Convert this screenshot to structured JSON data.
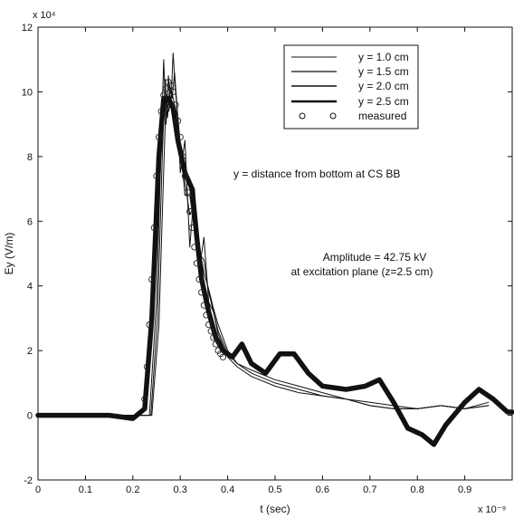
{
  "chart_data": {
    "type": "line",
    "title": "",
    "xlabel": "t (sec)",
    "ylabel": "Ey (V/m)",
    "x_multiplier": "x 10⁻⁹",
    "y_multiplier": "x 10⁴",
    "xlim": [
      0,
      1.0
    ],
    "ylim": [
      -2,
      12
    ],
    "x_ticks": [
      "0",
      "0.1",
      "0.2",
      "0.3",
      "0.4",
      "0.5",
      "0.6",
      "0.7",
      "0.8",
      "0.9"
    ],
    "y_ticks": [
      "-2",
      "0",
      "2",
      "4",
      "6",
      "8",
      "10",
      "12"
    ],
    "grid": false,
    "legend_position": "top-right",
    "annotations": [
      "y = distance from bottom at CS BB",
      "Amplitude = 42.75 kV",
      "at excitation plane (z=2.5 cm)"
    ],
    "series": [
      {
        "name": "y = 1.0 cm",
        "style": "thin",
        "x": [
          0,
          0.1,
          0.2,
          0.235,
          0.25,
          0.26,
          0.265,
          0.27,
          0.275,
          0.28,
          0.285,
          0.29,
          0.295,
          0.3,
          0.31,
          0.32,
          0.33,
          0.34,
          0.35,
          0.36,
          0.37,
          0.38,
          0.4,
          0.42,
          0.45,
          0.5,
          0.55,
          0.6,
          0.65,
          0.7,
          0.75,
          0.8,
          0.85,
          0.9,
          0.95
        ],
        "y": [
          0,
          0,
          0,
          0,
          3.5,
          8.5,
          11,
          9,
          10.5,
          9.5,
          11.2,
          10,
          9.2,
          7.5,
          8.5,
          5.2,
          7,
          4.5,
          5.5,
          3.5,
          3.2,
          2.5,
          1.8,
          1.5,
          1.2,
          0.9,
          0.7,
          0.6,
          0.5,
          0.3,
          0.2,
          0.2,
          0.3,
          0.2,
          0.4
        ]
      },
      {
        "name": "y = 1.5 cm",
        "style": "thin",
        "x": [
          0,
          0.1,
          0.2,
          0.238,
          0.252,
          0.262,
          0.268,
          0.273,
          0.278,
          0.283,
          0.288,
          0.293,
          0.3,
          0.31,
          0.32,
          0.33,
          0.34,
          0.35,
          0.36,
          0.37,
          0.38,
          0.4,
          0.42,
          0.45,
          0.5,
          0.55,
          0.6,
          0.65,
          0.7,
          0.75,
          0.8,
          0.85,
          0.9,
          0.95
        ],
        "y": [
          0,
          0,
          0,
          0,
          3,
          8,
          10.4,
          9.2,
          10.2,
          9.8,
          10.6,
          9.6,
          8,
          7.2,
          6.2,
          6.5,
          5,
          4.8,
          3.8,
          3.2,
          2.6,
          1.9,
          1.6,
          1.3,
          1,
          0.8,
          0.6,
          0.5,
          0.3,
          0.2,
          0.2,
          0.3,
          0.2,
          0.3
        ]
      },
      {
        "name": "y = 2.0 cm",
        "style": "thin",
        "x": [
          0,
          0.1,
          0.2,
          0.24,
          0.255,
          0.265,
          0.27,
          0.276,
          0.282,
          0.288,
          0.295,
          0.3,
          0.31,
          0.32,
          0.33,
          0.34,
          0.35,
          0.36,
          0.37,
          0.38,
          0.4,
          0.42,
          0.45,
          0.5,
          0.55,
          0.6,
          0.65,
          0.7,
          0.75,
          0.8,
          0.85,
          0.9,
          0.95
        ],
        "y": [
          0,
          0,
          0,
          0,
          2.8,
          7.6,
          9.8,
          9.4,
          10,
          9.6,
          9.2,
          8.4,
          6.8,
          6.8,
          5.8,
          5.2,
          4.4,
          3.9,
          3.3,
          2.8,
          2,
          1.6,
          1.4,
          1.1,
          0.9,
          0.7,
          0.5,
          0.4,
          0.3,
          0.2,
          0.3,
          0.2,
          0.3
        ]
      },
      {
        "name": "y = 2.5 cm",
        "style": "thick",
        "x": [
          0,
          0.05,
          0.1,
          0.15,
          0.2,
          0.225,
          0.24,
          0.255,
          0.265,
          0.275,
          0.285,
          0.295,
          0.31,
          0.325,
          0.335,
          0.345,
          0.36,
          0.375,
          0.39,
          0.41,
          0.43,
          0.45,
          0.48,
          0.51,
          0.54,
          0.57,
          0.6,
          0.65,
          0.69,
          0.72,
          0.75,
          0.78,
          0.81,
          0.835,
          0.86,
          0.9,
          0.93,
          0.96,
          0.99,
          1.0
        ],
        "y": [
          0,
          0,
          0,
          0,
          -0.1,
          0.2,
          3,
          8,
          9.8,
          9.8,
          9.5,
          8.5,
          7.5,
          7,
          5.5,
          4.2,
          3.2,
          2.4,
          2,
          1.8,
          2.2,
          1.6,
          1.3,
          1.9,
          1.9,
          1.3,
          0.9,
          0.8,
          0.9,
          1.1,
          0.4,
          -0.4,
          -0.6,
          -0.9,
          -0.3,
          0.4,
          0.8,
          0.5,
          0.1,
          0.1
        ]
      },
      {
        "name": "measured",
        "style": "circles",
        "x": [
          0.225,
          0.23,
          0.235,
          0.24,
          0.245,
          0.25,
          0.255,
          0.26,
          0.265,
          0.27,
          0.275,
          0.28,
          0.285,
          0.29,
          0.295,
          0.3,
          0.305,
          0.31,
          0.315,
          0.32,
          0.325,
          0.33,
          0.335,
          0.34,
          0.345,
          0.35,
          0.355,
          0.36,
          0.365,
          0.37,
          0.375,
          0.38,
          0.385,
          0.39
        ],
        "y": [
          0.5,
          1.5,
          2.8,
          4.2,
          5.8,
          7.4,
          8.6,
          9.4,
          9.9,
          10.1,
          10.3,
          10.2,
          10,
          9.6,
          9.1,
          8.6,
          8,
          7.4,
          6.9,
          6.3,
          5.8,
          5.2,
          4.7,
          4.2,
          3.8,
          3.4,
          3.1,
          2.8,
          2.6,
          2.4,
          2.2,
          2,
          1.9,
          1.8
        ]
      }
    ]
  }
}
